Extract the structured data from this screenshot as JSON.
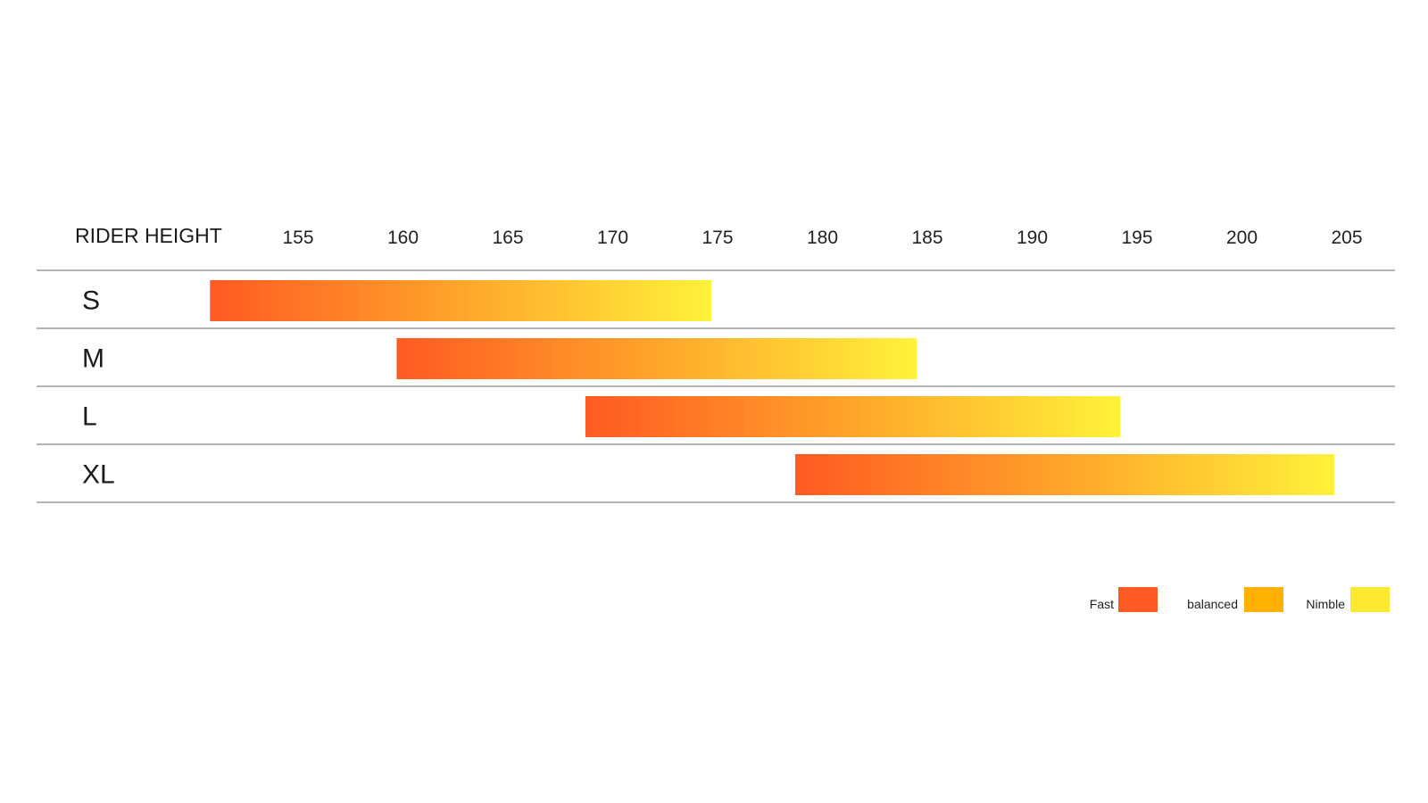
{
  "chart_data": {
    "type": "bar",
    "subtype": "floating-range",
    "header_label": "RIDER HEIGHT",
    "x_ticks": [
      155,
      160,
      165,
      170,
      175,
      180,
      185,
      190,
      195,
      200,
      205
    ],
    "xlim": [
      155,
      205
    ],
    "categories": [
      "S",
      "M",
      "L",
      "XL"
    ],
    "ranges": [
      {
        "category": "S",
        "start": 150.8,
        "end": 174.7
      },
      {
        "category": "M",
        "start": 159.7,
        "end": 184.5
      },
      {
        "category": "L",
        "start": 168.7,
        "end": 194.2
      },
      {
        "category": "XL",
        "start": 178.7,
        "end": 204.4
      }
    ],
    "gradient_colors": [
      "#ff5a22",
      "#ffa52a",
      "#fff23a"
    ],
    "legend": [
      {
        "label": "Fast",
        "color": "#ff5a22"
      },
      {
        "label": "balanced",
        "color": "#ffb000"
      },
      {
        "label": "Nimble",
        "color": "#fde92f"
      }
    ],
    "legend_position": "bottom-right",
    "grid": "row-separators"
  }
}
